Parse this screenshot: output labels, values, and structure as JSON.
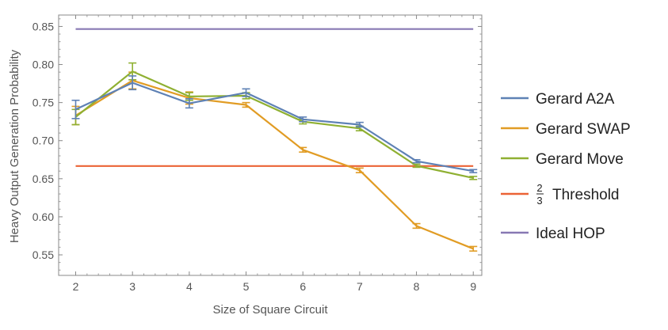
{
  "chart_data": {
    "type": "line",
    "xlabel": "Size of Square Circuit",
    "ylabel": "Heavy Output Generation Probability",
    "x": [
      2,
      3,
      4,
      5,
      6,
      7,
      8,
      9
    ],
    "xlim": [
      1.7,
      9.15
    ],
    "ylim": [
      0.523,
      0.865
    ],
    "yticks": [
      0.55,
      0.6,
      0.65,
      0.7,
      0.75,
      0.8,
      0.85
    ],
    "ytick_labels": [
      "0.55",
      "0.60",
      "0.65",
      "0.70",
      "0.75",
      "0.80",
      "0.85"
    ],
    "xticks": [
      2,
      3,
      4,
      5,
      6,
      7,
      8,
      9
    ],
    "xtick_labels": [
      "2",
      "3",
      "4",
      "5",
      "6",
      "7",
      "8",
      "9"
    ],
    "grid": false,
    "legend_position": "right",
    "series": [
      {
        "name": "Gerard A2A",
        "color": "#5e81b5",
        "values": [
          0.741,
          0.776,
          0.749,
          0.763,
          0.728,
          0.721,
          0.673,
          0.66
        ],
        "errors": [
          0.012,
          0.009,
          0.006,
          0.005,
          0.003,
          0.003,
          0.002,
          0.002
        ]
      },
      {
        "name": "Gerard SWAP",
        "color": "#e19c24",
        "values": [
          0.733,
          0.779,
          0.756,
          0.747,
          0.688,
          0.661,
          0.588,
          0.558
        ],
        "errors": [
          0.012,
          0.011,
          0.008,
          0.003,
          0.003,
          0.003,
          0.003,
          0.003
        ]
      },
      {
        "name": "Gerard Move",
        "color": "#8fb032",
        "values": [
          0.731,
          0.791,
          0.758,
          0.759,
          0.725,
          0.716,
          0.667,
          0.651
        ],
        "errors": [
          0.01,
          0.011,
          0.005,
          0.004,
          0.003,
          0.003,
          0.002,
          0.002
        ]
      },
      {
        "name": "Threshold",
        "legend_prefix_numerator": "2",
        "legend_prefix_denominator": "3",
        "color": "#eb6235",
        "values": [
          0.6667,
          0.6667,
          0.6667,
          0.6667,
          0.6667,
          0.6667,
          0.6667,
          0.6667
        ]
      },
      {
        "name": "Ideal HOP",
        "color": "#8778b3",
        "values": [
          0.8466,
          0.8466,
          0.8466,
          0.8466,
          0.8466,
          0.8466,
          0.8466,
          0.8466
        ]
      }
    ]
  }
}
